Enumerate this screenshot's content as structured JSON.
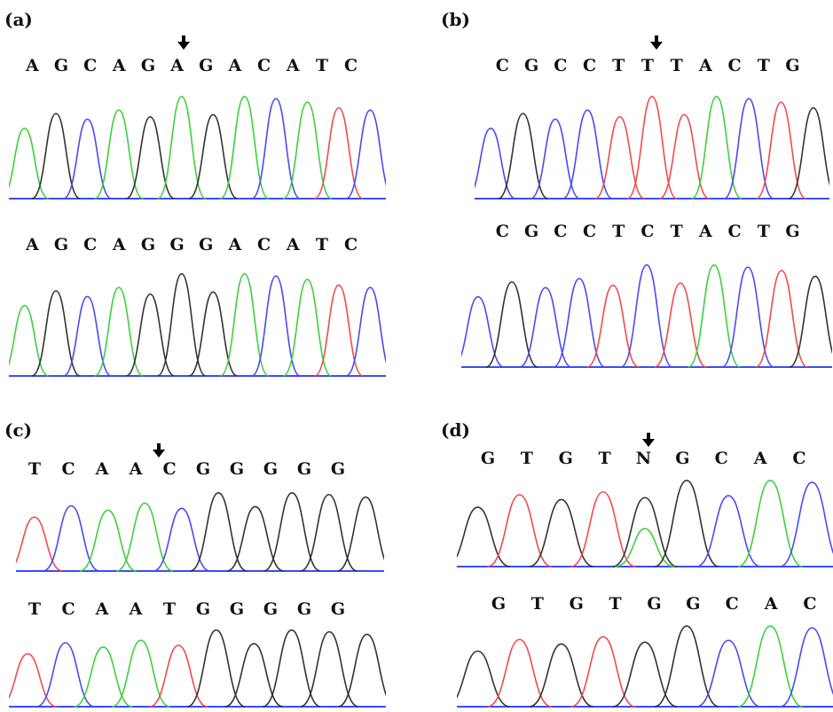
{
  "panels": [
    {
      "label": "(a)",
      "top_sequence": [
        "A",
        "G",
        "C",
        "A",
        "G",
        "A",
        "G",
        "A",
        "C",
        "A",
        "T",
        "C"
      ],
      "bottom_sequence": [
        "A",
        "G",
        "C",
        "A",
        "G",
        "G",
        "G",
        "A",
        "C",
        "A",
        "T",
        "C"
      ],
      "marked_position": 6
    },
    {
      "label": "(b)",
      "top_sequence": [
        "C",
        "G",
        "C",
        "C",
        "T",
        "T",
        "T",
        "A",
        "C",
        "T",
        "G"
      ],
      "bottom_sequence": [
        "C",
        "G",
        "C",
        "C",
        "T",
        "C",
        "T",
        "A",
        "C",
        "T",
        "G"
      ],
      "marked_position": 6
    },
    {
      "label": "(c)",
      "top_sequence": [
        "T",
        "C",
        "A",
        "A",
        "C",
        "G",
        "G",
        "G",
        "G",
        "G"
      ],
      "bottom_sequence": [
        "T",
        "C",
        "A",
        "A",
        "T",
        "G",
        "G",
        "G",
        "G",
        "G"
      ],
      "marked_position": 5
    },
    {
      "label": "(d)",
      "top_sequence": [
        "G",
        "T",
        "G",
        "T",
        "N",
        "G",
        "C",
        "A",
        "C"
      ],
      "bottom_sequence": [
        "G",
        "T",
        "G",
        "T",
        "G",
        "G",
        "C",
        "A",
        "C"
      ],
      "marked_position": 5
    }
  ],
  "colors": {
    "A": "#3fcf3f",
    "C": "#4a4af2",
    "G": "#333333",
    "T": "#f24a4a",
    "baseline": "#3a4cff"
  }
}
